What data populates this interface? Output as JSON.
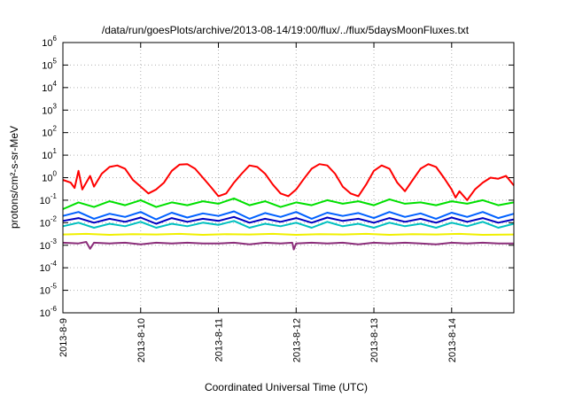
{
  "chart_data": {
    "type": "line",
    "title": "/data/run/goesPlots/archive/2013-08-14/19:00/flux/../flux/5daysMoonFluxes.txt",
    "xlabel": "Coordinated Universal Time (UTC)",
    "ylabel": "protons/cm²-s-sr-MeV",
    "y_scale": "log",
    "ylim_exp": [
      -6,
      6
    ],
    "y_ticks": [
      {
        "base": "10",
        "exp": "-6"
      },
      {
        "base": "10",
        "exp": "-5"
      },
      {
        "base": "10",
        "exp": "-4"
      },
      {
        "base": "10",
        "exp": "-3"
      },
      {
        "base": "10",
        "exp": "-2"
      },
      {
        "base": "10",
        "exp": "-1"
      },
      {
        "base": "10",
        "exp": "0"
      },
      {
        "base": "10",
        "exp": "1"
      },
      {
        "base": "10",
        "exp": "2"
      },
      {
        "base": "10",
        "exp": "3"
      },
      {
        "base": "10",
        "exp": "4"
      },
      {
        "base": "10",
        "exp": "5"
      },
      {
        "base": "10",
        "exp": "6"
      }
    ],
    "x_range_days": [
      0,
      5.8
    ],
    "x_ticks": [
      {
        "day": 0,
        "label": "2013-8-9"
      },
      {
        "day": 1,
        "label": "2013-8-10"
      },
      {
        "day": 2,
        "label": "2013-8-11"
      },
      {
        "day": 3,
        "label": "2013-8-12"
      },
      {
        "day": 4,
        "label": "2013-8-13"
      },
      {
        "day": 5,
        "label": "2013-8-14"
      }
    ],
    "grid": true,
    "series": [
      {
        "color": "#ff0000",
        "x": [
          0,
          0.1,
          0.15,
          0.2,
          0.25,
          0.3,
          0.35,
          0.4,
          0.5,
          0.6,
          0.7,
          0.8,
          0.9,
          1.0,
          1.1,
          1.2,
          1.3,
          1.4,
          1.5,
          1.6,
          1.7,
          1.8,
          1.9,
          2.0,
          2.1,
          2.2,
          2.3,
          2.4,
          2.5,
          2.6,
          2.7,
          2.8,
          2.9,
          3.0,
          3.1,
          3.2,
          3.3,
          3.4,
          3.5,
          3.6,
          3.7,
          3.8,
          3.9,
          4.0,
          4.1,
          4.2,
          4.3,
          4.4,
          4.5,
          4.6,
          4.7,
          4.8,
          4.9,
          5.0,
          5.05,
          5.1,
          5.2,
          5.3,
          5.4,
          5.5,
          5.6,
          5.7,
          5.8
        ],
        "y": [
          0.8,
          0.6,
          0.35,
          2.0,
          0.3,
          0.6,
          1.2,
          0.4,
          1.5,
          3.0,
          3.5,
          2.5,
          0.8,
          0.4,
          0.2,
          0.3,
          0.6,
          2.0,
          3.8,
          4.0,
          2.5,
          1.0,
          0.4,
          0.15,
          0.2,
          0.6,
          1.5,
          3.5,
          3.0,
          1.5,
          0.5,
          0.2,
          0.15,
          0.3,
          0.9,
          2.5,
          4.0,
          3.5,
          1.5,
          0.4,
          0.2,
          0.15,
          0.5,
          2.0,
          3.5,
          2.5,
          0.6,
          0.25,
          0.8,
          2.5,
          4.0,
          3.0,
          1.0,
          0.3,
          0.13,
          0.25,
          0.1,
          0.3,
          0.6,
          1.0,
          0.9,
          1.2,
          0.45
        ]
      },
      {
        "color": "#00e000",
        "x": [
          0,
          0.2,
          0.4,
          0.6,
          0.8,
          1.0,
          1.2,
          1.4,
          1.6,
          1.8,
          2.0,
          2.2,
          2.4,
          2.6,
          2.8,
          3.0,
          3.2,
          3.4,
          3.6,
          3.8,
          4.0,
          4.2,
          4.4,
          4.6,
          4.8,
          5.0,
          5.2,
          5.4,
          5.6,
          5.8
        ],
        "y": [
          0.04,
          0.08,
          0.05,
          0.09,
          0.06,
          0.1,
          0.05,
          0.08,
          0.06,
          0.09,
          0.07,
          0.12,
          0.06,
          0.09,
          0.05,
          0.08,
          0.06,
          0.1,
          0.07,
          0.09,
          0.06,
          0.11,
          0.07,
          0.08,
          0.06,
          0.09,
          0.07,
          0.1,
          0.06,
          0.08
        ]
      },
      {
        "color": "#00c0c0",
        "x": [
          0,
          0.2,
          0.4,
          0.6,
          0.8,
          1.0,
          1.2,
          1.4,
          1.6,
          1.8,
          2.0,
          2.2,
          2.4,
          2.6,
          2.8,
          3.0,
          3.2,
          3.4,
          3.6,
          3.8,
          4.0,
          4.2,
          4.4,
          4.6,
          4.8,
          5.0,
          5.2,
          5.4,
          5.6,
          5.8
        ],
        "y": [
          0.007,
          0.01,
          0.006,
          0.009,
          0.007,
          0.011,
          0.006,
          0.009,
          0.007,
          0.01,
          0.008,
          0.012,
          0.006,
          0.009,
          0.007,
          0.01,
          0.006,
          0.011,
          0.007,
          0.009,
          0.006,
          0.01,
          0.007,
          0.009,
          0.006,
          0.01,
          0.007,
          0.011,
          0.006,
          0.009
        ]
      },
      {
        "color": "#0060ff",
        "x": [
          0,
          0.2,
          0.4,
          0.6,
          0.8,
          1.0,
          1.2,
          1.4,
          1.6,
          1.8,
          2.0,
          2.2,
          2.4,
          2.6,
          2.8,
          3.0,
          3.2,
          3.4,
          3.6,
          3.8,
          4.0,
          4.2,
          4.4,
          4.6,
          4.8,
          5.0,
          5.2,
          5.4,
          5.6,
          5.8
        ],
        "y": [
          0.02,
          0.03,
          0.015,
          0.025,
          0.018,
          0.03,
          0.014,
          0.028,
          0.017,
          0.026,
          0.02,
          0.032,
          0.015,
          0.027,
          0.018,
          0.03,
          0.015,
          0.028,
          0.02,
          0.027,
          0.016,
          0.03,
          0.018,
          0.026,
          0.015,
          0.028,
          0.018,
          0.03,
          0.016,
          0.025
        ]
      },
      {
        "color": "#0000c0",
        "x": [
          0,
          0.2,
          0.4,
          0.6,
          0.8,
          1.0,
          1.2,
          1.4,
          1.6,
          1.8,
          2.0,
          2.2,
          2.4,
          2.6,
          2.8,
          3.0,
          3.2,
          3.4,
          3.6,
          3.8,
          4.0,
          4.2,
          4.4,
          4.6,
          4.8,
          5.0,
          5.2,
          5.4,
          5.6,
          5.8
        ],
        "y": [
          0.012,
          0.016,
          0.01,
          0.015,
          0.011,
          0.017,
          0.009,
          0.016,
          0.011,
          0.015,
          0.012,
          0.018,
          0.01,
          0.015,
          0.011,
          0.016,
          0.01,
          0.017,
          0.012,
          0.015,
          0.01,
          0.016,
          0.011,
          0.015,
          0.01,
          0.017,
          0.011,
          0.016,
          0.01,
          0.014
        ]
      },
      {
        "color": "#f0f000",
        "x": [
          0,
          0.3,
          0.6,
          0.9,
          1.2,
          1.5,
          1.8,
          2.1,
          2.4,
          2.7,
          3.0,
          3.3,
          3.6,
          3.9,
          4.2,
          4.5,
          4.8,
          5.1,
          5.4,
          5.8
        ],
        "y": [
          0.003,
          0.0032,
          0.0029,
          0.0031,
          0.003,
          0.0032,
          0.0029,
          0.0031,
          0.003,
          0.0032,
          0.0029,
          0.0031,
          0.003,
          0.0032,
          0.0029,
          0.0031,
          0.003,
          0.0032,
          0.0029,
          0.003
        ]
      },
      {
        "color": "#8b2e7a",
        "x": [
          0,
          0.2,
          0.3,
          0.35,
          0.4,
          0.6,
          0.8,
          1.0,
          1.2,
          1.4,
          1.6,
          1.8,
          2.0,
          2.2,
          2.4,
          2.6,
          2.8,
          2.95,
          2.97,
          3.0,
          3.2,
          3.4,
          3.6,
          3.8,
          4.0,
          4.2,
          4.4,
          4.6,
          4.8,
          5.0,
          5.2,
          5.4,
          5.6,
          5.8
        ],
        "y": [
          0.0013,
          0.0012,
          0.0014,
          0.0007,
          0.0013,
          0.0012,
          0.0013,
          0.0011,
          0.0013,
          0.0012,
          0.0013,
          0.0012,
          0.0012,
          0.0013,
          0.0011,
          0.0013,
          0.0012,
          0.0013,
          0.00065,
          0.0012,
          0.0013,
          0.0012,
          0.0013,
          0.0011,
          0.0013,
          0.0012,
          0.0013,
          0.0012,
          0.0011,
          0.0013,
          0.0012,
          0.0013,
          0.0012,
          0.0012
        ]
      }
    ]
  }
}
